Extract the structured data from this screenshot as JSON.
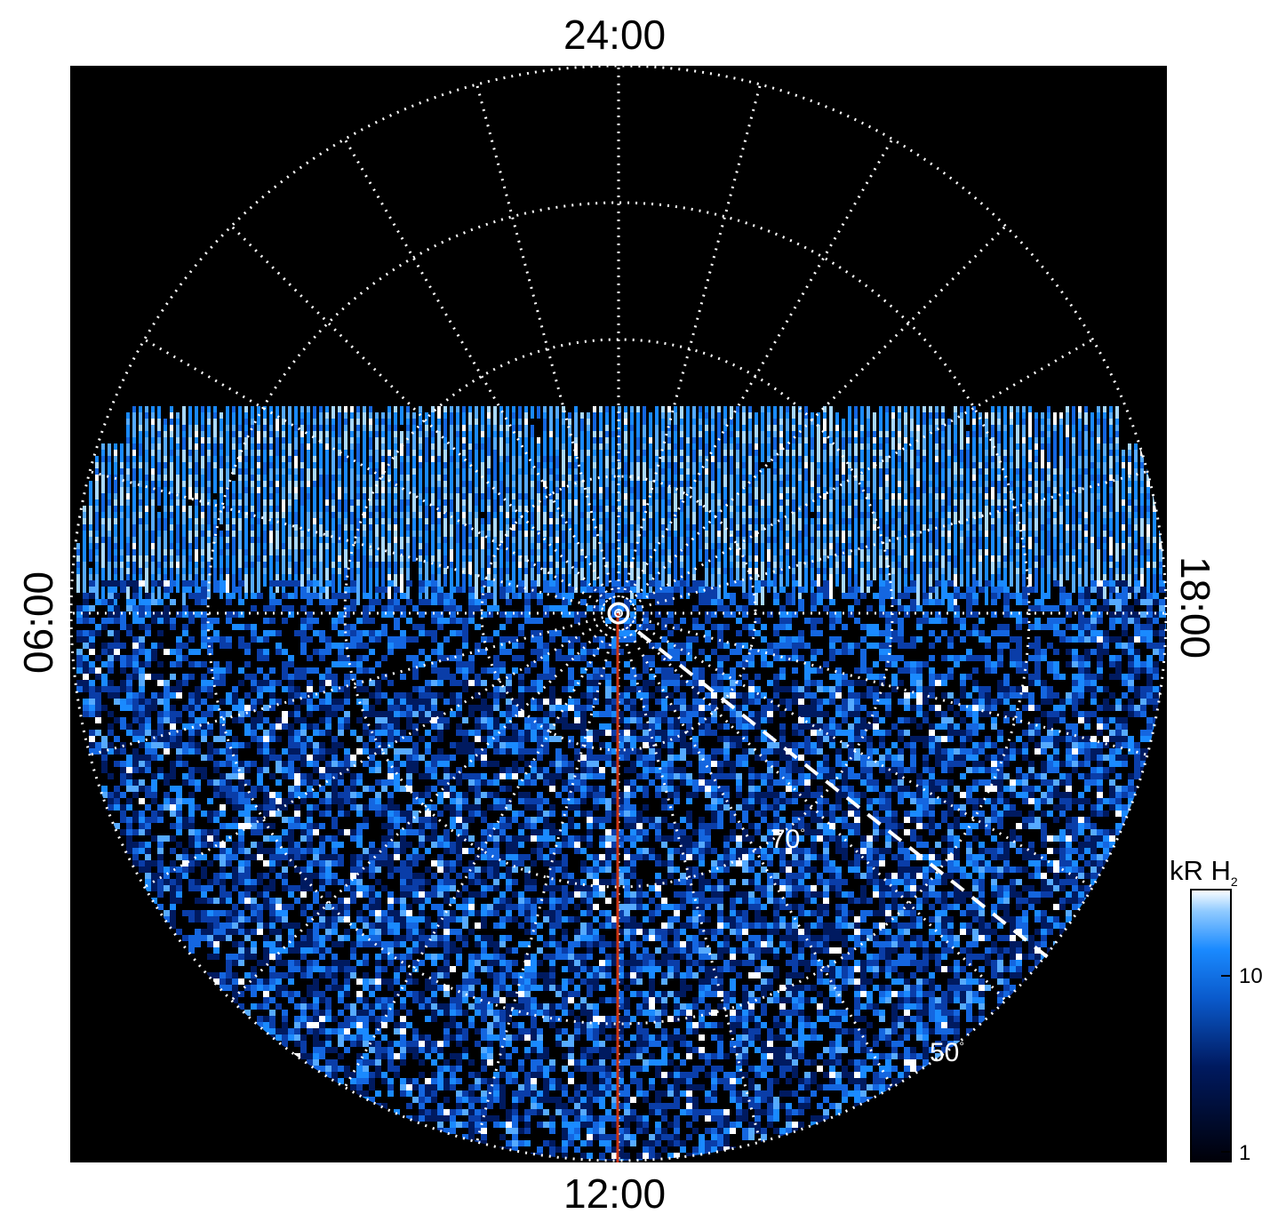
{
  "local_time_labels": {
    "top": "24:00",
    "bottom": "12:00",
    "left": "06:00",
    "right": "18:00"
  },
  "latitude_labels": {
    "lat_70": "70",
    "lat_50": "50",
    "degree_symbol": "°"
  },
  "colorbar": {
    "title_main": "kR H",
    "title_sub": "2",
    "scale": "log",
    "range": [
      1,
      25
    ],
    "ticks": [
      "10",
      "1"
    ],
    "colors": [
      "#000008",
      "#001a60",
      "#0a5acc",
      "#1a8aff",
      "#8fcaff",
      "#ffffff"
    ]
  },
  "map": {
    "projection": "polar",
    "background_color": "#000000",
    "grid_color": "#ffffff",
    "meridian_line_color": "#cc3311",
    "auroral_palette": [
      "#000000",
      "#001a60",
      "#0a3da8",
      "#1466e0",
      "#1a8aff",
      "#56aaff",
      "#a8d8ff",
      "#ffffff"
    ]
  }
}
